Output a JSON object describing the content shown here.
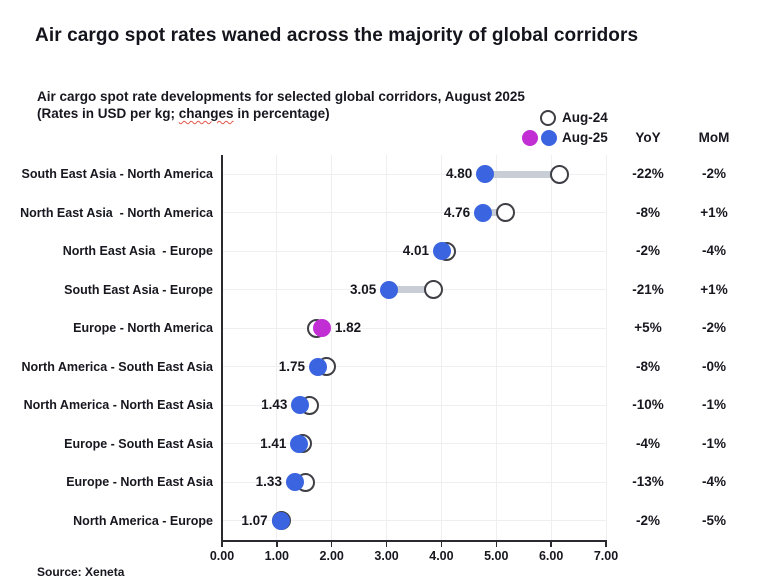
{
  "header": {
    "title": "Air cargo spot rates waned across the majority of global corridors",
    "subtitle_line1": "Air cargo spot rate developments for selected global corridors, August 2025",
    "subtitle_line2_pre": "(Rates in USD per kg; ",
    "subtitle_line2_word": "changes",
    "subtitle_line2_post": " in percentage)"
  },
  "legend": {
    "aug24_label": "Aug-24",
    "aug25_label": "Aug-25"
  },
  "columns": {
    "yoy_label": "YoY",
    "mom_label": "MoM"
  },
  "source": "Source: Xeneta",
  "colors": {
    "aug25_blue": "#3b64e0",
    "aug25_magenta": "#c02ed4",
    "aug24_fill": "#ffffff",
    "aug24_border": "#3f3f46",
    "connector": "#c9cdd6",
    "grid": "#efeff2",
    "axis": "#2a2a30",
    "text": "#17171f"
  },
  "chart_data": {
    "type": "dumbbell",
    "title": "Air cargo spot rate developments for selected global corridors, August 2025",
    "subtitle": "(Rates in USD per kg; changes in percentage)",
    "categories": [
      "South East Asia - North America",
      "North East Asia  - North America",
      "North East Asia  - Europe",
      "South East Asia - Europe",
      "Europe - North America",
      "North America - South East Asia",
      "North America - North East Asia",
      "Europe - South East Asia",
      "Europe - North East Asia",
      "North America - Europe"
    ],
    "series": [
      {
        "name": "Aug-24",
        "values": [
          6.15,
          5.17,
          4.09,
          3.86,
          1.73,
          1.9,
          1.59,
          1.47,
          1.53,
          1.09
        ]
      },
      {
        "name": "Aug-25",
        "values": [
          4.8,
          4.76,
          4.01,
          3.05,
          1.82,
          1.75,
          1.43,
          1.41,
          1.33,
          1.07
        ]
      }
    ],
    "value_labels": [
      "4.80",
      "4.76",
      "4.01",
      "3.05",
      "1.82",
      "1.75",
      "1.43",
      "1.41",
      "1.33",
      "1.07"
    ],
    "value_label_side": [
      "left",
      "left",
      "left",
      "left",
      "right",
      "left",
      "left",
      "left",
      "left",
      "left"
    ],
    "aug25_dot_colors": [
      "#3b64e0",
      "#3b64e0",
      "#3b64e0",
      "#3b64e0",
      "#c02ed4",
      "#3b64e0",
      "#3b64e0",
      "#3b64e0",
      "#3b64e0",
      "#3b64e0"
    ],
    "yoy": [
      "-22%",
      "-8%",
      "-2%",
      "-21%",
      "+5%",
      "-8%",
      "-10%",
      "-4%",
      "-13%",
      "-2%"
    ],
    "mom": [
      "-2%",
      "+1%",
      "-4%",
      "+1%",
      "-2%",
      "-0%",
      "-1%",
      "-1%",
      "-4%",
      "-5%"
    ],
    "x_ticks": [
      "0.00",
      "1.00",
      "2.00",
      "3.00",
      "4.00",
      "5.00",
      "6.00",
      "7.00"
    ],
    "xlim": [
      0,
      7
    ],
    "grid": true,
    "legend_position": "top-right"
  }
}
